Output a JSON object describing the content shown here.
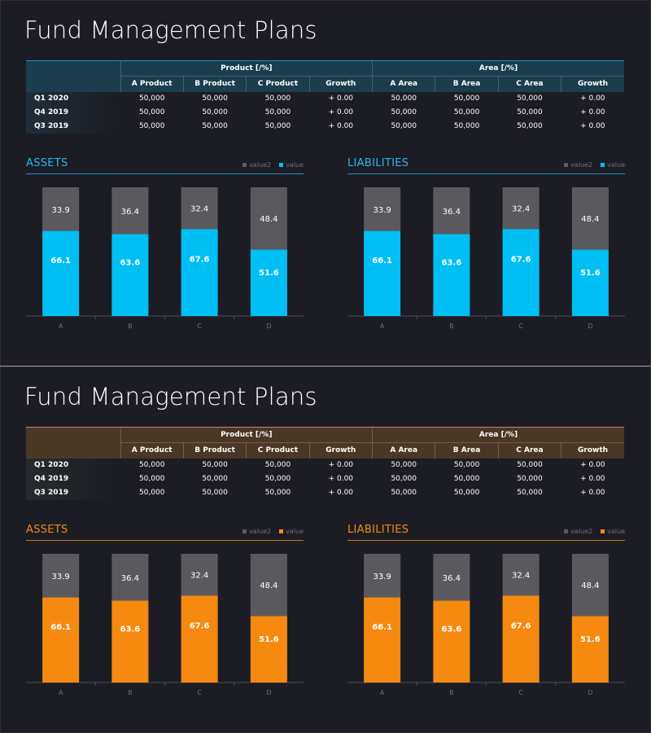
{
  "panels": [
    {
      "theme": "blue",
      "accent": "#00bff5",
      "title": "Fund Management Plans",
      "table": {
        "group1": "Product [/%]",
        "group2": "Area [/%]",
        "columns": [
          "A Product",
          "B Product",
          "C Product",
          "Growth",
          "A Area",
          "B Area",
          "C Area",
          "Growth"
        ],
        "rows": [
          {
            "label": "Q1 2020",
            "cells": [
              "50,000",
              "50,000",
              "50,000",
              "+ 0.00",
              "50,000",
              "50,000",
              "50,000",
              "+ 0.00"
            ]
          },
          {
            "label": "Q4 2019",
            "cells": [
              "50,000",
              "50,000",
              "50,000",
              "+ 0.00",
              "50,000",
              "50,000",
              "50,000",
              "+ 0.00"
            ]
          },
          {
            "label": "Q3 2019",
            "cells": [
              "50,000",
              "50,000",
              "50,000",
              "+ 0.00",
              "50,000",
              "50,000",
              "50,000",
              "+ 0.00"
            ]
          }
        ]
      },
      "assets": {
        "title": "ASSETS",
        "legend": [
          "value2",
          "value"
        ]
      },
      "liabilities": {
        "title": "LIABILITIES",
        "legend": [
          "value2",
          "value"
        ]
      }
    },
    {
      "theme": "orange",
      "accent": "#f68a10",
      "title": "Fund Management Plans",
      "table": {
        "group1": "Product [/%]",
        "group2": "Area [/%]",
        "columns": [
          "A Product",
          "B Product",
          "C Product",
          "Growth",
          "A Area",
          "B Area",
          "C Area",
          "Growth"
        ],
        "rows": [
          {
            "label": "Q1 2020",
            "cells": [
              "50,000",
              "50,000",
              "50,000",
              "+ 0.00",
              "50,000",
              "50,000",
              "50,000",
              "+ 0.00"
            ]
          },
          {
            "label": "Q4 2019",
            "cells": [
              "50,000",
              "50,000",
              "50,000",
              "+ 0.00",
              "50,000",
              "50,000",
              "50,000",
              "+ 0.00"
            ]
          },
          {
            "label": "Q3 2019",
            "cells": [
              "50,000",
              "50,000",
              "50,000",
              "+ 0.00",
              "50,000",
              "50,000",
              "50,000",
              "+ 0.00"
            ]
          }
        ]
      },
      "assets": {
        "title": "ASSETS",
        "legend": [
          "value2",
          "value"
        ]
      },
      "liabilities": {
        "title": "LIABILITIES",
        "legend": [
          "value2",
          "value"
        ]
      }
    }
  ],
  "chart_data": [
    {
      "type": "bar",
      "stacked": true,
      "title": "ASSETS",
      "panel": "blue",
      "categories": [
        "A",
        "B",
        "C",
        "D"
      ],
      "series": [
        {
          "name": "value",
          "values": [
            66.1,
            63.6,
            67.6,
            51.6
          ],
          "color": "#00bff5"
        },
        {
          "name": "value2",
          "values": [
            33.9,
            36.4,
            32.4,
            48.4
          ],
          "color": "#5a5a5e"
        }
      ],
      "ylim": [
        0,
        100
      ],
      "grid": false,
      "legend": "top-right"
    },
    {
      "type": "bar",
      "stacked": true,
      "title": "LIABILITIES",
      "panel": "blue",
      "categories": [
        "A",
        "B",
        "C",
        "D"
      ],
      "series": [
        {
          "name": "value",
          "values": [
            66.1,
            63.6,
            67.6,
            51.6
          ],
          "color": "#00bff5"
        },
        {
          "name": "value2",
          "values": [
            33.9,
            36.4,
            32.4,
            48.4
          ],
          "color": "#5a5a5e"
        }
      ],
      "ylim": [
        0,
        100
      ],
      "grid": false,
      "legend": "top-right"
    },
    {
      "type": "bar",
      "stacked": true,
      "title": "ASSETS",
      "panel": "orange",
      "categories": [
        "A",
        "B",
        "C",
        "D"
      ],
      "series": [
        {
          "name": "value",
          "values": [
            66.1,
            63.6,
            67.6,
            51.6
          ],
          "color": "#f68a10"
        },
        {
          "name": "value2",
          "values": [
            33.9,
            36.4,
            32.4,
            48.4
          ],
          "color": "#5a5a5e"
        }
      ],
      "ylim": [
        0,
        100
      ],
      "grid": false,
      "legend": "top-right"
    },
    {
      "type": "bar",
      "stacked": true,
      "title": "LIABILITIES",
      "panel": "orange",
      "categories": [
        "A",
        "B",
        "C",
        "D"
      ],
      "series": [
        {
          "name": "value",
          "values": [
            66.1,
            63.6,
            67.6,
            51.6
          ],
          "color": "#f68a10"
        },
        {
          "name": "value2",
          "values": [
            33.9,
            36.4,
            32.4,
            48.4
          ],
          "color": "#5a5a5e"
        }
      ],
      "ylim": [
        0,
        100
      ],
      "grid": false,
      "legend": "top-right"
    }
  ]
}
